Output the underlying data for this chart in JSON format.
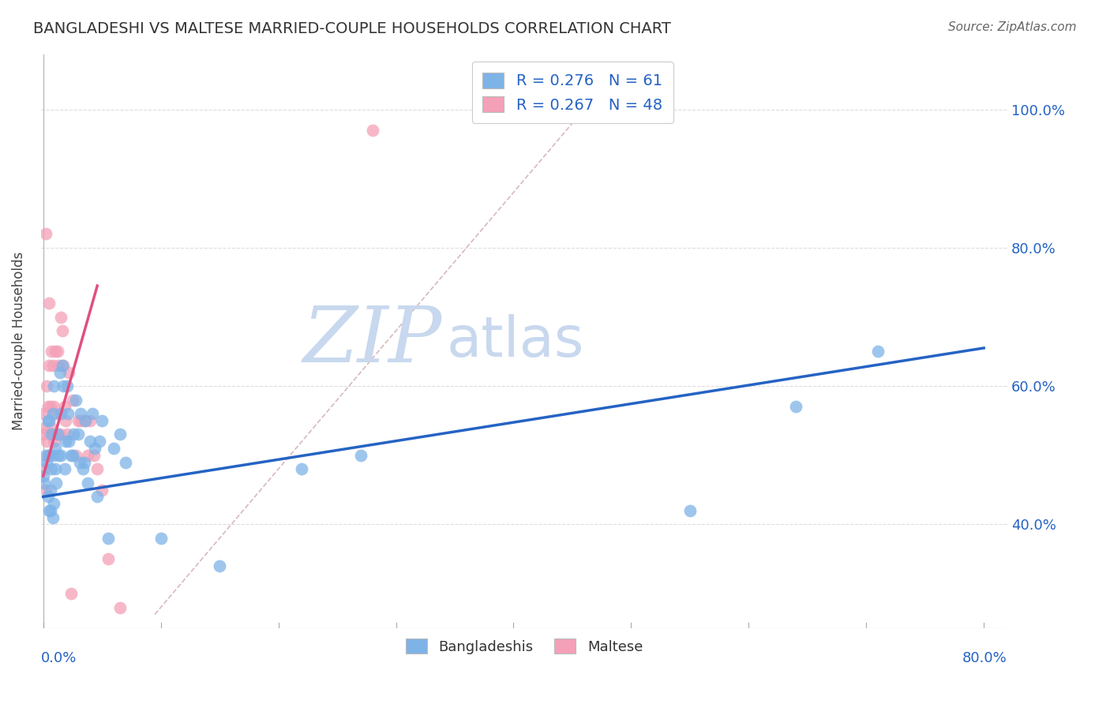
{
  "title": "BANGLADESHI VS MALTESE MARRIED-COUPLE HOUSEHOLDS CORRELATION CHART",
  "source": "Source: ZipAtlas.com",
  "ylabel": "Married-couple Households",
  "xlim": [
    -0.002,
    0.82
  ],
  "ylim": [
    0.25,
    1.08
  ],
  "blue_R": 0.276,
  "blue_N": 61,
  "pink_R": 0.267,
  "pink_N": 48,
  "blue_color": "#7eb3e8",
  "pink_color": "#f4a0b8",
  "blue_line_color": "#2563c4",
  "pink_line_color": "#e05080",
  "ref_line_color": "#d4b0b8",
  "watermark_zip_color": "#c8d8ee",
  "watermark_atlas_color": "#c8d8ee",
  "legend_text_color": "#2563c4",
  "title_color": "#333333",
  "axis_label_color": "#2563c4",
  "background_color": "#ffffff",
  "grid_color": "#dddddd",
  "blue_scatter_x": [
    0.0,
    0.001,
    0.002,
    0.003,
    0.004,
    0.004,
    0.005,
    0.005,
    0.005,
    0.006,
    0.006,
    0.007,
    0.007,
    0.008,
    0.008,
    0.008,
    0.009,
    0.009,
    0.01,
    0.01,
    0.011,
    0.012,
    0.013,
    0.014,
    0.015,
    0.015,
    0.016,
    0.017,
    0.018,
    0.019,
    0.02,
    0.021,
    0.022,
    0.024,
    0.025,
    0.026,
    0.028,
    0.03,
    0.031,
    0.032,
    0.034,
    0.035,
    0.036,
    0.038,
    0.04,
    0.042,
    0.044,
    0.046,
    0.048,
    0.05,
    0.055,
    0.06,
    0.065,
    0.07,
    0.1,
    0.15,
    0.22,
    0.27,
    0.55,
    0.64,
    0.71
  ],
  "blue_scatter_y": [
    0.47,
    0.46,
    0.5,
    0.49,
    0.44,
    0.55,
    0.5,
    0.55,
    0.42,
    0.45,
    0.42,
    0.48,
    0.53,
    0.41,
    0.5,
    0.56,
    0.43,
    0.6,
    0.48,
    0.51,
    0.46,
    0.53,
    0.5,
    0.62,
    0.56,
    0.5,
    0.63,
    0.6,
    0.48,
    0.52,
    0.6,
    0.56,
    0.52,
    0.5,
    0.5,
    0.53,
    0.58,
    0.53,
    0.49,
    0.56,
    0.48,
    0.49,
    0.55,
    0.46,
    0.52,
    0.56,
    0.51,
    0.44,
    0.52,
    0.55,
    0.38,
    0.51,
    0.53,
    0.49,
    0.38,
    0.34,
    0.48,
    0.5,
    0.42,
    0.57,
    0.65
  ],
  "pink_scatter_x": [
    0.0,
    0.0,
    0.001,
    0.001,
    0.002,
    0.002,
    0.003,
    0.003,
    0.004,
    0.004,
    0.005,
    0.005,
    0.005,
    0.006,
    0.006,
    0.007,
    0.007,
    0.008,
    0.008,
    0.009,
    0.009,
    0.01,
    0.01,
    0.011,
    0.012,
    0.013,
    0.014,
    0.015,
    0.016,
    0.017,
    0.018,
    0.019,
    0.02,
    0.022,
    0.024,
    0.025,
    0.028,
    0.03,
    0.032,
    0.035,
    0.038,
    0.04,
    0.043,
    0.046,
    0.05,
    0.055,
    0.065,
    0.28
  ],
  "pink_scatter_y": [
    0.53,
    0.56,
    0.54,
    0.48,
    0.82,
    0.45,
    0.52,
    0.6,
    0.57,
    0.5,
    0.63,
    0.5,
    0.72,
    0.53,
    0.57,
    0.54,
    0.65,
    0.53,
    0.63,
    0.52,
    0.57,
    0.56,
    0.65,
    0.53,
    0.65,
    0.63,
    0.53,
    0.7,
    0.68,
    0.63,
    0.57,
    0.55,
    0.53,
    0.62,
    0.3,
    0.58,
    0.5,
    0.55,
    0.55,
    0.55,
    0.5,
    0.55,
    0.5,
    0.48,
    0.45,
    0.35,
    0.28,
    0.97
  ],
  "blue_trend_x": [
    0.0,
    0.8
  ],
  "blue_trend_y": [
    0.44,
    0.655
  ],
  "pink_trend_x": [
    0.0,
    0.046
  ],
  "pink_trend_y": [
    0.47,
    0.745
  ],
  "ref_line_x": [
    0.095,
    0.47
  ],
  "ref_line_y": [
    0.27,
    1.02
  ],
  "ytick_vals": [
    0.4,
    0.6,
    0.8,
    1.0
  ],
  "ytick_labels": [
    "40.0%",
    "60.0%",
    "80.0%",
    "100.0%"
  ]
}
